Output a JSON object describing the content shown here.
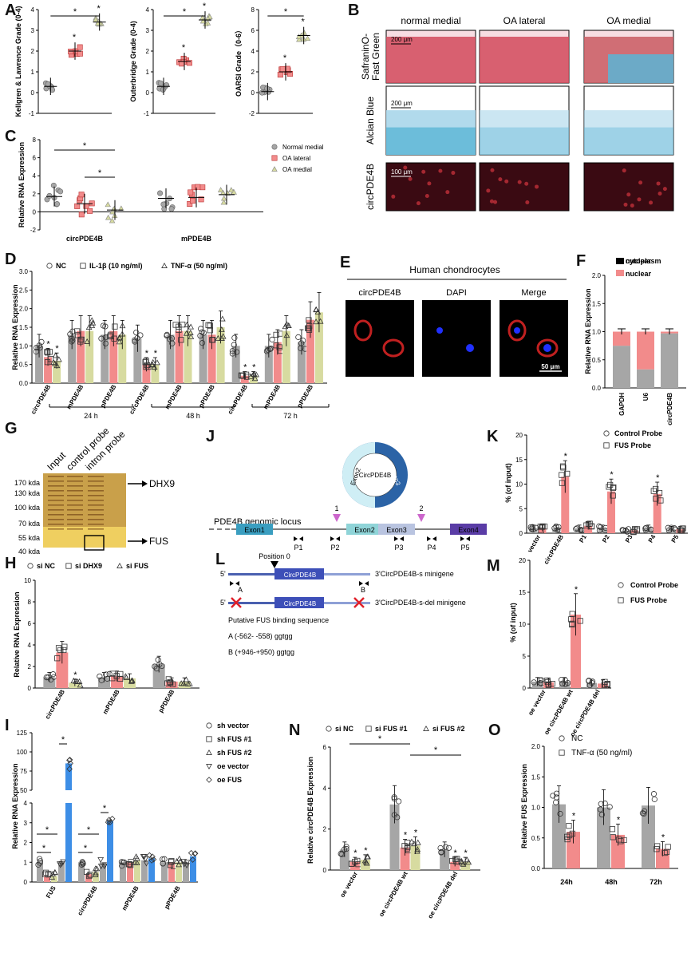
{
  "panel_letters": [
    "A",
    "B",
    "C",
    "D",
    "E",
    "F",
    "G",
    "H",
    "I",
    "J",
    "K",
    "L",
    "M",
    "N",
    "O"
  ],
  "colors": {
    "gray": "#a6a6a6",
    "red": "#f28b8b",
    "yellow": "#d7dba0",
    "blue": "#3d8ee6",
    "safranin": "#d94a5a",
    "alcian": "#5bb5d6",
    "fluor_bg": "#3a0a12"
  },
  "A": {
    "ylabels": [
      "Kellgren & Lawrence Grade (0-4)",
      "Outerbridge Grade (0-4)",
      "OARSI Grade（0-6）"
    ],
    "chart_data": [
      {
        "type": "scatter",
        "ylim": [
          -1,
          4
        ],
        "yticks": [
          "-1",
          "0",
          "1",
          "2",
          "3",
          "4"
        ],
        "groups": [
          "Normal medial",
          "OA lateral",
          "OA medial"
        ],
        "means": [
          0.3,
          2.0,
          3.4
        ],
        "star": "*"
      },
      {
        "type": "scatter",
        "ylim": [
          -1,
          4
        ],
        "yticks": [
          "-1",
          "0",
          "1",
          "2",
          "3",
          "4"
        ],
        "groups": [
          "Normal medial",
          "OA lateral",
          "OA medial"
        ],
        "means": [
          0.3,
          1.5,
          3.5
        ],
        "star": "*"
      },
      {
        "type": "scatter",
        "ylim": [
          -2,
          8
        ],
        "yticks": [
          "-2",
          "0",
          "2",
          "4",
          "6",
          "8"
        ],
        "groups": [
          "Normal medial",
          "OA lateral",
          "OA medial"
        ],
        "means": [
          0.1,
          2.0,
          5.5
        ],
        "star": "*"
      }
    ]
  },
  "B": {
    "col_headers": [
      "normal medial",
      "OA lateral",
      "OA medial"
    ],
    "row_labels": [
      "SafraninO-\nFast Green",
      "Alcian Blue",
      "circPDE4B"
    ],
    "scalebars": [
      "200 μm",
      "200 μm",
      "100 μm"
    ]
  },
  "C": {
    "ylabel": "Relative RNA Expression",
    "yticks": [
      "-2",
      "0",
      "2",
      "4",
      "6",
      "8"
    ],
    "chart_data": {
      "type": "scatter",
      "categories": [
        "circPDE4B",
        "mPDE4B"
      ],
      "series": [
        {
          "name": "Normal medial",
          "values": [
            1.7,
            1.5
          ]
        },
        {
          "name": "OA lateral",
          "values": [
            0.9,
            1.6
          ]
        },
        {
          "name": "OA medial",
          "values": [
            0.2,
            1.9
          ]
        }
      ],
      "ylim": [
        -2,
        8
      ]
    }
  },
  "D": {
    "legend": [
      "NC",
      "IL-1β (10 ng/ml)",
      "TNF-α (50 ng/ml)"
    ],
    "ylabel": "Relative RNA Expression",
    "yticks": [
      "0.0",
      "0.5",
      "1.0",
      "1.5",
      "2.0",
      "2.5",
      "3.0"
    ],
    "categories": [
      "circPDE4B",
      "mPDE4B",
      "pPDE4B",
      "circPDE4B",
      "mPDE4B",
      "pPDE4B",
      "circPDE4B",
      "mPDE4B",
      "pPDE4B"
    ],
    "timepoints": [
      "24 h",
      "48 h",
      "72 h"
    ],
    "chart_data": {
      "type": "bar",
      "ylim": [
        0,
        3
      ],
      "series": [
        {
          "name": "NC",
          "values": [
            1.0,
            1.3,
            1.3,
            1.2,
            1.3,
            1.3,
            1.0,
            1.0,
            1.1
          ]
        },
        {
          "name": "IL-1β (10 ng/ml)",
          "values": [
            0.7,
            1.4,
            1.4,
            0.5,
            1.4,
            1.3,
            0.2,
            1.1,
            1.7
          ]
        },
        {
          "name": "TNF-α (50 ng/ml)",
          "values": [
            0.6,
            1.4,
            1.3,
            0.5,
            1.4,
            1.5,
            0.2,
            1.4,
            1.9
          ]
        }
      ]
    }
  },
  "E": {
    "title": "Human chondrocytes",
    "cols": [
      "circPDE4B",
      "DAPI",
      "Merge"
    ],
    "scalebar": "50 μm"
  },
  "F": {
    "legend": [
      "cytoplasm",
      "nuclear"
    ],
    "ylabel": "Relative RNA Expression",
    "yticks": [
      "0.0",
      "0.5",
      "1.0",
      "1.5",
      "2.0"
    ],
    "chart_data": {
      "type": "bar",
      "categories": [
        "GAPDH",
        "U6",
        "circPDE4B"
      ],
      "ylim": [
        0,
        2
      ],
      "series": [
        {
          "name": "cytoplasm",
          "values": [
            0.75,
            0.33,
            0.97
          ]
        },
        {
          "name": "nuclear",
          "values": [
            0.25,
            0.67,
            0.03
          ]
        }
      ]
    }
  },
  "G": {
    "lanes": [
      "Input",
      "control probe",
      "intron probe"
    ],
    "markers": [
      "170 kda",
      "130 kda",
      "100 kda",
      "70 kda",
      "55 kda",
      "40 kda"
    ],
    "bands": [
      "DHX9",
      "FUS"
    ]
  },
  "H": {
    "legend": [
      "si NC",
      "si DHX9",
      "si FUS"
    ],
    "ylabel": "Relative RNA Expression",
    "yticks": [
      "0",
      "2",
      "4",
      "6",
      "8",
      "10"
    ],
    "chart_data": {
      "type": "bar",
      "categories": [
        "circPDE4B",
        "mPDE4B",
        "pPDE4B"
      ],
      "ylim": [
        0,
        10
      ],
      "series": [
        {
          "name": "si NC",
          "values": [
            1.0,
            1.0,
            2.2
          ]
        },
        {
          "name": "si DHX9",
          "values": [
            3.3,
            1.1,
            0.6
          ]
        },
        {
          "name": "si FUS",
          "values": [
            0.5,
            0.9,
            0.6
          ]
        }
      ]
    }
  },
  "I": {
    "legend": [
      "sh vector",
      "sh FUS #1",
      "sh FUS #2",
      "oe vector",
      "oe FUS"
    ],
    "ylabel": "Relative RNA Expression",
    "yticks_low": [
      "0",
      "1",
      "2",
      "3",
      "4"
    ],
    "yticks_high": [
      "50",
      "75",
      "100",
      "125"
    ],
    "chart_data": {
      "type": "bar",
      "categories": [
        "FUS",
        "circPDE4B",
        "mPDE4B",
        "pPDE4B"
      ],
      "ylim": [
        0,
        125
      ],
      "series": [
        {
          "name": "sh vector",
          "values": [
            1.0,
            1.0,
            1.0,
            1.0
          ]
        },
        {
          "name": "sh FUS #1",
          "values": [
            0.3,
            0.4,
            1.0,
            1.0
          ]
        },
        {
          "name": "sh FUS #2",
          "values": [
            0.3,
            0.5,
            1.1,
            1.0
          ]
        },
        {
          "name": "oe vector",
          "values": [
            1.0,
            1.0,
            1.1,
            1.0
          ]
        },
        {
          "name": "oe FUS",
          "values": [
            85,
            3.1,
            1.2,
            1.3
          ]
        }
      ]
    }
  },
  "J": {
    "circle_label": "CircPDE4B",
    "circle_exons": [
      "Exon2",
      "Exon3"
    ],
    "locus_label": "PDE4B genomic locus",
    "exons": [
      "Exon1",
      "Exon2",
      "Exon3",
      "Exon4"
    ],
    "primers": [
      "P1",
      "P2",
      "P3",
      "P4",
      "P5"
    ],
    "sites": [
      "1",
      "2"
    ]
  },
  "K": {
    "legend": [
      "Control Probe",
      "FUS Probe"
    ],
    "ylabel": "% (of input)",
    "yticks": [
      "0",
      "5",
      "10",
      "15",
      "20"
    ],
    "chart_data": {
      "type": "bar",
      "categories": [
        "vector",
        "circPDE4B",
        "P1",
        "P2",
        "P3",
        "P4",
        "P5"
      ],
      "ylim": [
        0,
        20
      ],
      "series": [
        {
          "name": "Control Probe",
          "values": [
            1.0,
            1.0,
            1.0,
            1.0,
            0.5,
            1.0,
            0.8
          ]
        },
        {
          "name": "FUS Probe",
          "values": [
            1.0,
            11.5,
            1.5,
            8.5,
            0.6,
            8.0,
            0.8
          ]
        }
      ]
    }
  },
  "L": {
    "position_label": "Position 0",
    "minigenes": [
      "3'CircPDE4B-s minigene",
      "3'CircPDE4B-s-del minigene"
    ],
    "circ_label": "CircPDE4B",
    "site_a": "A",
    "site_b": "B",
    "five_prime": "5'",
    "binding_title": "Putative FUS binding sequence",
    "seq_a": "A  (-562- -558)   ggtgg",
    "seq_b": "B  (+946-+950)   ggtgg"
  },
  "M": {
    "legend": [
      "Control Probe",
      "FUS Probe"
    ],
    "ylabel": "% (of input)",
    "yticks": [
      "0",
      "5",
      "10",
      "15",
      "20"
    ],
    "chart_data": {
      "type": "bar",
      "categories": [
        "oe vector",
        "oe circPDE4B wt",
        "oe circPDE4B del"
      ],
      "ylim": [
        0,
        20
      ],
      "series": [
        {
          "name": "Control Probe",
          "values": [
            1.0,
            1.0,
            0.8
          ]
        },
        {
          "name": "FUS Probe",
          "values": [
            0.9,
            11.5,
            0.7
          ]
        }
      ]
    }
  },
  "N": {
    "legend": [
      "si NC",
      "si FUS #1",
      "si FUS #2"
    ],
    "ylabel": "Relative circPDE4B Expression",
    "yticks": [
      "0",
      "2",
      "4",
      "6"
    ],
    "chart_data": {
      "type": "bar",
      "categories": [
        "oe vector",
        "oe circPDE4B wt",
        "oe circPDE4B del"
      ],
      "ylim": [
        0,
        6
      ],
      "series": [
        {
          "name": "si NC",
          "values": [
            1.0,
            3.2,
            1.0
          ]
        },
        {
          "name": "si FUS #1",
          "values": [
            0.4,
            1.1,
            0.4
          ]
        },
        {
          "name": "si FUS #2",
          "values": [
            0.5,
            1.2,
            0.4
          ]
        }
      ]
    }
  },
  "O": {
    "legend": [
      "NC",
      "TNF-α (50 ng/ml)"
    ],
    "ylabel": "Relative FUS Expression",
    "yticks": [
      "0.0",
      "0.5",
      "1.0",
      "1.5",
      "2.0"
    ],
    "chart_data": {
      "type": "bar",
      "categories": [
        "24h",
        "48h",
        "72h"
      ],
      "ylim": [
        0,
        2
      ],
      "series": [
        {
          "name": "NC",
          "values": [
            1.05,
            1.0,
            1.03
          ]
        },
        {
          "name": "TNF-α (50 ng/ml)",
          "values": [
            0.6,
            0.55,
            0.32
          ]
        }
      ]
    }
  },
  "star": "*"
}
